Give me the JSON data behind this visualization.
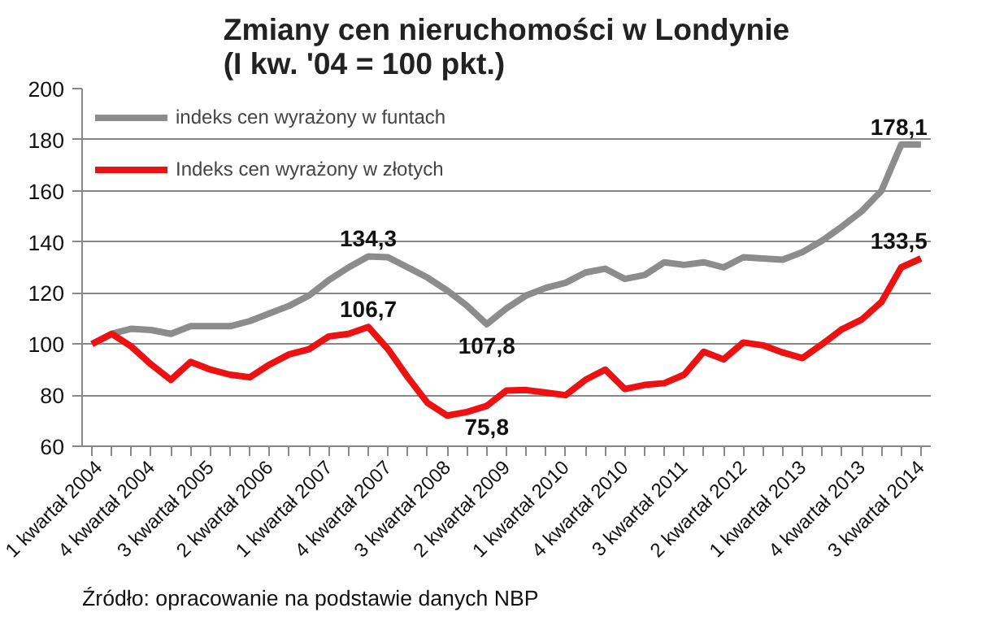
{
  "chart_data": {
    "type": "line",
    "title": "Zmiany cen nieruchomości w Londynie\n(I kw. '04 = 100 pkt.)",
    "categories": [
      "1 kwartał 2004",
      null,
      null,
      "4 kwartał 2004",
      null,
      null,
      "3 kwartał 2005",
      null,
      null,
      "2 kwartał 2006",
      null,
      null,
      "1 kwartał 2007",
      null,
      null,
      "4 kwartał 2007",
      null,
      null,
      "3 kwartał 2008",
      null,
      null,
      "2 kwartał 2009",
      null,
      null,
      "1 kwartał 2010",
      null,
      null,
      "4 kwartał 2010",
      null,
      null,
      "3 kwartał 2011",
      null,
      null,
      "2 kwartał 2012",
      null,
      null,
      "1 kwartał 2013",
      null,
      null,
      "4 kwartał 2013",
      null,
      null,
      "3 kwartał 2014"
    ],
    "series": [
      {
        "name": "indeks cen wyrażony w funtach",
        "color": "#8c8c8c",
        "values": [
          100,
          104,
          106,
          105.5,
          104,
          107,
          107,
          107,
          109,
          112,
          115,
          119,
          125,
          130,
          134.3,
          134,
          130,
          126,
          121,
          115,
          107.8,
          114,
          119,
          122,
          124,
          128,
          129.5,
          125.5,
          127,
          132,
          131,
          132,
          130,
          134,
          133.5,
          133,
          136,
          140.5,
          146,
          152,
          160,
          178.1,
          178.1
        ],
        "value_labels": [
          null,
          null,
          null,
          null,
          null,
          null,
          null,
          null,
          null,
          null,
          null,
          null,
          null,
          null,
          "134,3",
          null,
          null,
          null,
          null,
          null,
          "107,8",
          null,
          null,
          null,
          null,
          null,
          null,
          null,
          null,
          null,
          null,
          null,
          null,
          null,
          null,
          null,
          null,
          null,
          null,
          null,
          null,
          null,
          "178,1"
        ]
      },
      {
        "name": "Indeks cen wyrażony w złotych",
        "color": "#ee1111",
        "values": [
          100,
          104,
          99,
          92,
          86,
          93,
          90,
          88,
          87,
          92,
          96,
          98,
          103,
          104,
          106.7,
          98,
          87,
          77,
          72,
          73.4,
          75.8,
          81.8,
          82,
          81,
          80,
          86,
          90,
          82.4,
          84,
          84.7,
          88,
          97,
          94,
          100.6,
          99.5,
          96.7,
          94.5,
          100,
          105.8,
          109.6,
          116.5,
          130,
          133.5
        ],
        "value_labels": [
          null,
          null,
          null,
          null,
          null,
          null,
          null,
          null,
          null,
          null,
          null,
          null,
          null,
          null,
          "106,7",
          null,
          null,
          null,
          null,
          null,
          "75,8",
          null,
          null,
          null,
          null,
          null,
          null,
          null,
          null,
          null,
          null,
          null,
          null,
          null,
          null,
          null,
          null,
          null,
          null,
          null,
          null,
          null,
          "133,5"
        ]
      }
    ],
    "ylim": [
      60,
      200
    ],
    "yticks": [
      60,
      80,
      100,
      120,
      140,
      160,
      180,
      200
    ],
    "grid": "y",
    "legend": "top left",
    "marker": "none",
    "line_style": "solid",
    "annotations": [
      "Źródło: opracowanie na podstawie danych NBP"
    ]
  }
}
